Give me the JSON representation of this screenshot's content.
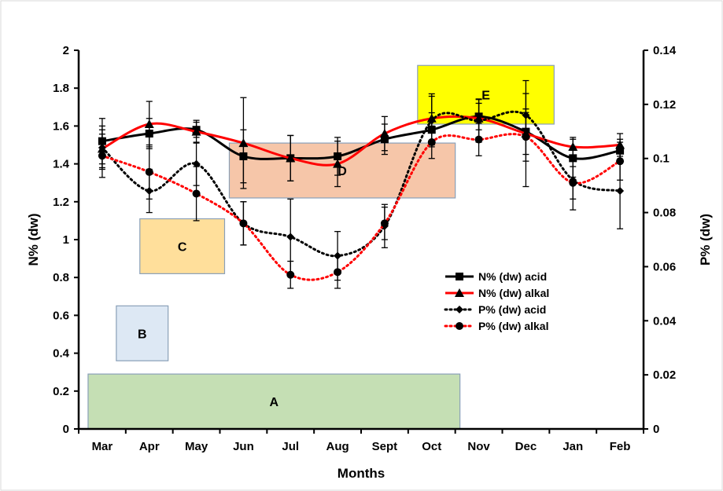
{
  "chart_data": {
    "type": "line",
    "categories": [
      "Mar",
      "Apr",
      "May",
      "Jun",
      "Jul",
      "Aug",
      "Sept",
      "Oct",
      "Nov",
      "Dec",
      "Jan",
      "Feb"
    ],
    "xlabel": "Months",
    "ylabel": "N% (dw)",
    "ylabel_right": "P% (dw)",
    "ylim": [
      0,
      2
    ],
    "ylim_right": [
      0,
      0.14
    ],
    "yticks": [
      "0",
      "0.2",
      "0.4",
      "0.6",
      "0.8",
      "1",
      "1.2",
      "1.4",
      "1.6",
      "1.8",
      "2"
    ],
    "yticks_right": [
      "0",
      "0.02",
      "0.04",
      "0.06",
      "0.08",
      "0.1",
      "0.12",
      "0.14"
    ],
    "grid": false,
    "legend_position": "center-right",
    "series": [
      {
        "name": "N% (dw) acid",
        "axis": "left",
        "color": "#000000",
        "line": "solid",
        "marker": "square",
        "values": [
          1.52,
          1.56,
          1.58,
          1.44,
          1.43,
          1.44,
          1.53,
          1.58,
          1.65,
          1.57,
          1.43,
          1.47
        ],
        "err": [
          0.12,
          0.08,
          0.04,
          0.14,
          0.12,
          0.1,
          0.08,
          0.09,
          0.07,
          0.12,
          0.1,
          0.06
        ]
      },
      {
        "name": "N% (dw) alkal",
        "axis": "left",
        "color": "#ff0000",
        "line": "solid",
        "marker": "triangle",
        "values": [
          1.48,
          1.61,
          1.57,
          1.51,
          1.43,
          1.4,
          1.56,
          1.64,
          1.64,
          1.56,
          1.49,
          1.5
        ],
        "err": [
          0.1,
          0.12,
          0.06,
          0.24,
          0.12,
          0.12,
          0.09,
          0.13,
          0.1,
          0.28,
          0.05,
          0.06
        ]
      },
      {
        "name": "P% (dw) acid",
        "axis": "right",
        "color": "#000000",
        "line": "dotted",
        "marker": "diamond",
        "values": [
          0.104,
          0.088,
          0.098,
          0.076,
          0.071,
          0.064,
          0.075,
          0.114,
          0.114,
          0.116,
          0.092,
          0.088
        ],
        "err": [
          0.008,
          0.008,
          0.008,
          0.008,
          0.014,
          0.009,
          0.008,
          0.009,
          0.008,
          0.008,
          0.011,
          0.014
        ]
      },
      {
        "name": "P% (dw) alkal",
        "axis": "right",
        "color": "#ff0000",
        "line": "dotted",
        "marker": "circle",
        "values": [
          0.101,
          0.095,
          0.087,
          0.076,
          0.057,
          0.058,
          0.076,
          0.106,
          0.107,
          0.108,
          0.091,
          0.099
        ],
        "err": [
          0.008,
          0.01,
          0.01,
          0.008,
          0.005,
          0.006,
          0.006,
          0.006,
          0.006,
          0.009,
          0.006,
          0.007
        ]
      }
    ],
    "annotation_boxes": [
      {
        "label": "A",
        "color": "#c5dfb4",
        "border": "#8aa0b8",
        "x": [
          -0.3,
          7.6
        ],
        "y": [
          0,
          0.29
        ]
      },
      {
        "label": "B",
        "color": "#dde8f4",
        "border": "#8aa0b8",
        "x": [
          0.3,
          1.4
        ],
        "y": [
          0.36,
          0.65
        ]
      },
      {
        "label": "C",
        "color": "#ffdf9b",
        "border": "#8aa0b8",
        "x": [
          0.8,
          2.6
        ],
        "y": [
          0.82,
          1.11
        ]
      },
      {
        "label": "D",
        "color": "#f6c6a9",
        "border": "#8aa0b8",
        "x": [
          2.7,
          7.5
        ],
        "y": [
          1.22,
          1.51
        ]
      },
      {
        "label": "E",
        "color": "#ffff00",
        "border": "#8aa0b8",
        "x": [
          6.7,
          9.6
        ],
        "y": [
          1.61,
          1.92
        ]
      }
    ]
  }
}
